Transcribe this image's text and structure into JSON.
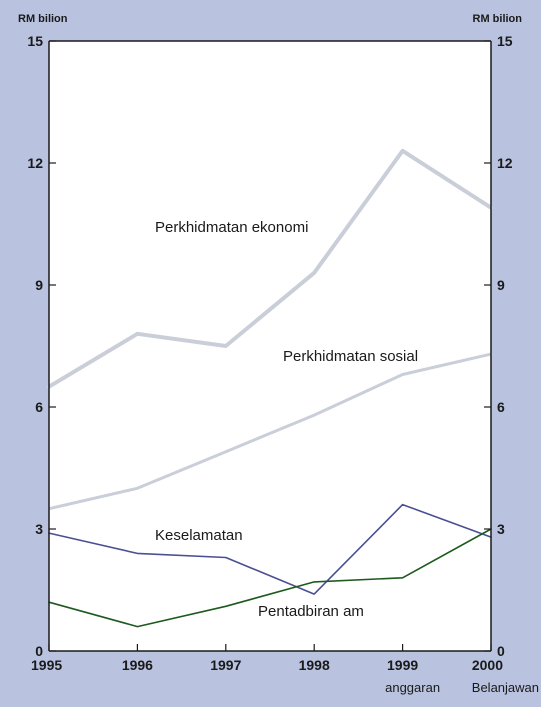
{
  "chart_data": {
    "type": "line",
    "y_unit_left": "RM bilion",
    "y_unit_right": "RM bilion",
    "x": [
      "1995",
      "1996",
      "1997",
      "1998",
      "1999",
      "2000"
    ],
    "x_notes": {
      "1999": "anggaran",
      "2000": "Belanjawan"
    },
    "ylim": [
      0,
      15
    ],
    "yticks": [
      "0",
      "3",
      "6",
      "9",
      "12",
      "15"
    ],
    "grid": false,
    "series": [
      {
        "name": "Perkhidmatan ekonomi",
        "values": [
          6.5,
          7.8,
          7.5,
          9.3,
          12.3,
          10.9
        ],
        "color": "#c9ced9"
      },
      {
        "name": "Perkhidmatan sosial",
        "values": [
          3.5,
          4.0,
          4.9,
          5.8,
          6.8,
          7.3
        ],
        "color": "#c9ced9"
      },
      {
        "name": "Keselamatan",
        "values": [
          2.9,
          2.4,
          2.3,
          1.4,
          3.6,
          2.8
        ],
        "color": "#4a4f93"
      },
      {
        "name": "Pentadbiran am",
        "values": [
          1.2,
          0.6,
          1.1,
          1.7,
          1.8,
          3.0
        ],
        "color": "#1e5a1e"
      }
    ]
  }
}
